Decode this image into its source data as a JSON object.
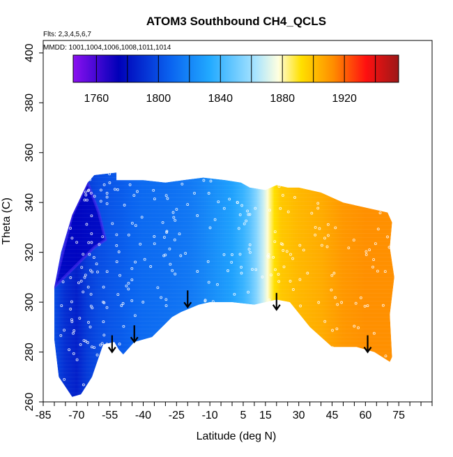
{
  "chart_data": {
    "type": "heatmap",
    "title": "ATOM3 Southbound CH4_QCLS",
    "notes": [
      "Flts: 2,3,4,5,6,7",
      "MMDD: 1001,1004,1006,1008,1011,1014"
    ],
    "xlabel": "Latitude (deg N)",
    "ylabel": "Theta (C)",
    "xlim": [
      -85,
      90
    ],
    "ylim": [
      260,
      405
    ],
    "x_tick_labels": [
      "-85",
      "-70",
      "-55",
      "-40",
      "-25",
      "-10",
      "5",
      "15",
      "30",
      "45",
      "60",
      "75"
    ],
    "x_tick_values": [
      -85,
      -70,
      -55,
      -40,
      -25,
      -10,
      5,
      15,
      30,
      45,
      60,
      75
    ],
    "x_minor_step": 5,
    "y_tick_labels": [
      "260",
      "280",
      "300",
      "320",
      "340",
      "360",
      "380",
      "400"
    ],
    "y_tick_values": [
      260,
      280,
      300,
      320,
      340,
      360,
      380,
      400
    ],
    "colorbar": {
      "range": [
        1745,
        1955
      ],
      "tick_labels": [
        "1760",
        "1800",
        "1840",
        "1880",
        "1920"
      ],
      "tick_values": [
        1760,
        1800,
        1840,
        1880,
        1920
      ],
      "divisions": [
        1760,
        1780,
        1800,
        1820,
        1840,
        1860,
        1880,
        1900,
        1920,
        1940
      ],
      "colors": [
        "#8b10f0",
        "#0000b8",
        "#0a64f0",
        "#22aaff",
        "#a8e4ff",
        "#ffffe0",
        "#ffe000",
        "#ff8c00",
        "#ff1010",
        "#9c1818"
      ],
      "color_stops": [
        0,
        0.14,
        0.3,
        0.42,
        0.56,
        0.63,
        0.7,
        0.8,
        0.9,
        1
      ]
    },
    "field": {
      "upper_boundary": [
        [
          -80,
          306
        ],
        [
          -77,
          320
        ],
        [
          -72,
          335
        ],
        [
          -65,
          348
        ],
        [
          -62,
          351
        ],
        [
          -52,
          352
        ],
        [
          -52,
          349
        ],
        [
          -40,
          349
        ],
        [
          -30,
          348
        ],
        [
          -22,
          349
        ],
        [
          -13,
          350
        ],
        [
          -3,
          349
        ],
        [
          4,
          348
        ],
        [
          8,
          346
        ],
        [
          15,
          345
        ],
        [
          20,
          347
        ],
        [
          25,
          346
        ],
        [
          30,
          346
        ],
        [
          40,
          344
        ],
        [
          50,
          340
        ],
        [
          60,
          338
        ],
        [
          70,
          336
        ],
        [
          72,
          332
        ],
        [
          71,
          322
        ],
        [
          73,
          310
        ],
        [
          71,
          295
        ],
        [
          72,
          278
        ],
        [
          71,
          276
        ]
      ],
      "lower_boundary": [
        [
          71,
          276
        ],
        [
          64,
          280
        ],
        [
          56,
          282
        ],
        [
          45,
          282
        ],
        [
          35,
          290
        ],
        [
          26,
          300
        ],
        [
          20,
          301
        ],
        [
          10,
          299
        ],
        [
          0,
          300
        ],
        [
          -10,
          300
        ],
        [
          -15,
          299
        ],
        [
          -23,
          296
        ],
        [
          -27,
          294
        ],
        [
          -36,
          286
        ],
        [
          -44,
          284
        ],
        [
          -49,
          279
        ],
        [
          -51,
          281
        ],
        [
          -53,
          284
        ],
        [
          -58,
          283
        ],
        [
          -63,
          270
        ],
        [
          -68,
          263
        ],
        [
          -72,
          262
        ],
        [
          -78,
          270
        ],
        [
          -80,
          285
        ],
        [
          -80,
          306
        ]
      ],
      "ch4_by_latitude": [
        [
          -80,
          1800
        ],
        [
          -75,
          1790
        ],
        [
          -70,
          1785
        ],
        [
          -65,
          1795
        ],
        [
          -60,
          1800
        ],
        [
          -55,
          1803
        ],
        [
          -50,
          1805
        ],
        [
          -45,
          1808
        ],
        [
          -40,
          1810
        ],
        [
          -30,
          1812
        ],
        [
          -20,
          1815
        ],
        [
          -15,
          1818
        ],
        [
          -10,
          1822
        ],
        [
          -5,
          1826
        ],
        [
          0,
          1830
        ],
        [
          5,
          1838
        ],
        [
          8,
          1845
        ],
        [
          11,
          1855
        ],
        [
          14,
          1868
        ],
        [
          16,
          1878
        ],
        [
          19,
          1892
        ],
        [
          22,
          1898
        ],
        [
          30,
          1902
        ],
        [
          40,
          1905
        ],
        [
          50,
          1910
        ],
        [
          60,
          1912
        ],
        [
          72,
          1912
        ]
      ],
      "upper_left_low_band": [
        [
          -80,
          306,
          1770
        ],
        [
          -72,
          335,
          1755
        ],
        [
          -65,
          348,
          1750
        ],
        [
          -60,
          336,
          1757
        ],
        [
          -57,
          325,
          1763
        ],
        [
          -62,
          322,
          1760
        ]
      ]
    },
    "arrows_latitude": [
      -54,
      -44,
      -20,
      20,
      61
    ],
    "arrows_theta_tip": [
      280,
      284,
      298,
      297,
      280
    ]
  }
}
